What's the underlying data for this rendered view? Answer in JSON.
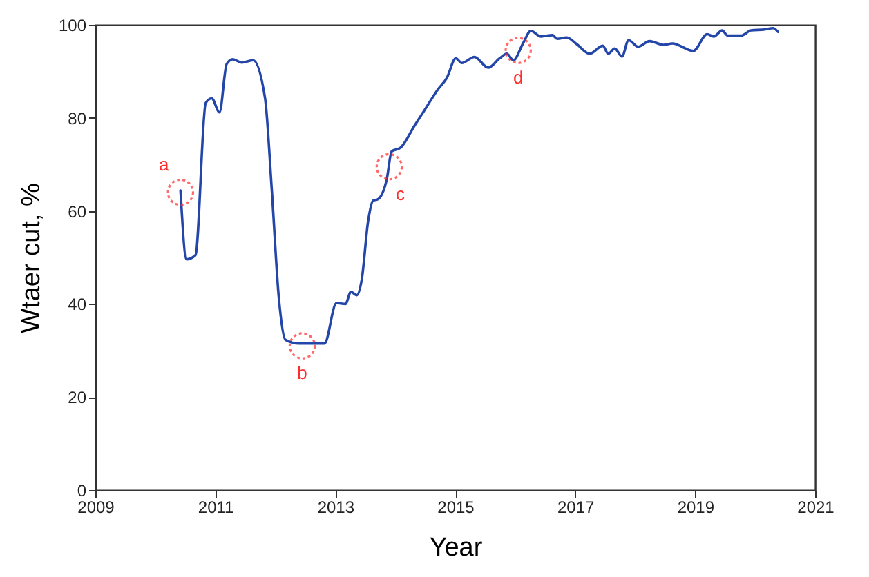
{
  "chart_data": {
    "type": "line",
    "xlabel": "Year",
    "ylabel": "Wtaer cut, %",
    "xlim": [
      2009,
      2021
    ],
    "xticks": [
      2009,
      2011,
      2013,
      2015,
      2017,
      2019,
      2021
    ],
    "ylim": [
      0,
      100
    ],
    "yticks": [
      0,
      20,
      40,
      60,
      80,
      100
    ],
    "grid": false,
    "marker": "none",
    "line_style": "solid",
    "x": [
      2010.42,
      2010.52,
      2010.67,
      2010.84,
      2010.94,
      2011.07,
      2011.19,
      2011.29,
      2011.44,
      2011.63,
      2011.83,
      2011.94,
      2012.06,
      2012.17,
      2012.4,
      2012.82,
      2013.02,
      2013.17,
      2013.26,
      2013.36,
      2013.44,
      2013.55,
      2013.63,
      2013.71,
      2013.86,
      2013.94,
      2014.09,
      2014.32,
      2014.48,
      2014.71,
      2014.86,
      2015.01,
      2015.11,
      2015.32,
      2015.55,
      2015.74,
      2015.86,
      2015.97,
      2016.13,
      2016.26,
      2016.43,
      2016.62,
      2016.7,
      2016.86,
      2017.03,
      2017.24,
      2017.46,
      2017.55,
      2017.66,
      2017.78,
      2017.89,
      2018.05,
      2018.24,
      2018.47,
      2018.62,
      2018.97,
      2019.2,
      2019.31,
      2019.45,
      2019.54,
      2019.77,
      2019.93,
      2020.16,
      2020.3,
      2020.38
    ],
    "series": [
      {
        "color": "#2346a8",
        "values": [
          64.4,
          49.6,
          50.5,
          83.2,
          84.2,
          81.2,
          91.6,
          92.6,
          91.9,
          92.4,
          84.2,
          64.9,
          41.2,
          32.3,
          31.5,
          31.5,
          40.2,
          40.0,
          42.6,
          41.9,
          45.1,
          58.0,
          62.2,
          62.5,
          66.9,
          72.8,
          73.6,
          78.3,
          81.5,
          86.1,
          88.6,
          92.8,
          91.8,
          93.1,
          90.8,
          92.8,
          93.8,
          92.4,
          96.0,
          98.7,
          97.5,
          97.8,
          97.0,
          97.3,
          95.8,
          93.8,
          95.5,
          93.8,
          94.9,
          93.2,
          96.7,
          95.3,
          96.5,
          95.7,
          96.0,
          94.4,
          98.0,
          97.5,
          98.8,
          97.7,
          97.7,
          98.8,
          99.0,
          99.3,
          98.5
        ]
      }
    ],
    "annotations": [
      {
        "text": "a",
        "x": 2010.42,
        "y": 64
      },
      {
        "text": "b",
        "x": 2012.45,
        "y": 31
      },
      {
        "text": "c",
        "x": 2013.9,
        "y": 69.5
      },
      {
        "text": "d",
        "x": 2016.05,
        "y": 94.5
      }
    ]
  }
}
